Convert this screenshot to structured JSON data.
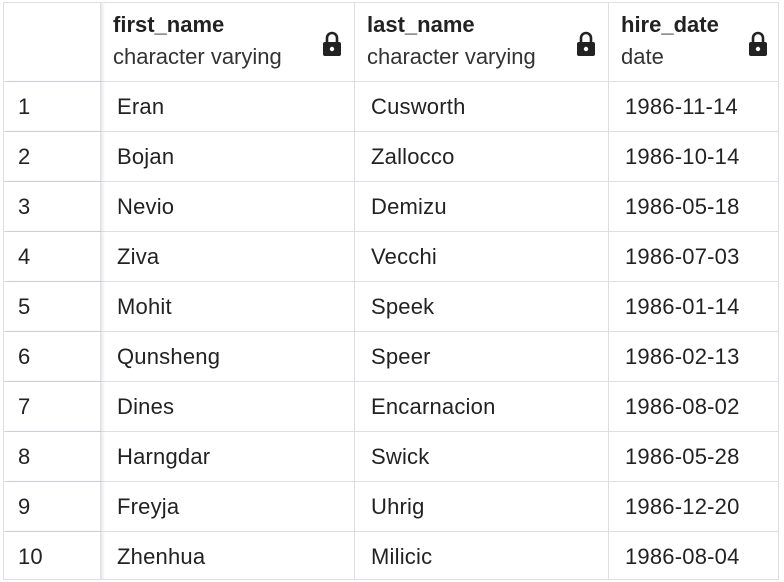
{
  "columns": [
    {
      "name": "first_name",
      "type": "character varying",
      "icon": "lock-icon"
    },
    {
      "name": "last_name",
      "type": "character varying",
      "icon": "lock-icon"
    },
    {
      "name": "hire_date",
      "type": "date",
      "icon": "lock-icon"
    }
  ],
  "rows": [
    {
      "index": "1",
      "first_name": "Eran",
      "last_name": "Cusworth",
      "hire_date": "1986-11-14"
    },
    {
      "index": "2",
      "first_name": "Bojan",
      "last_name": "Zallocco",
      "hire_date": "1986-10-14"
    },
    {
      "index": "3",
      "first_name": "Nevio",
      "last_name": "Demizu",
      "hire_date": "1986-05-18"
    },
    {
      "index": "4",
      "first_name": "Ziva",
      "last_name": "Vecchi",
      "hire_date": "1986-07-03"
    },
    {
      "index": "5",
      "first_name": "Mohit",
      "last_name": "Speek",
      "hire_date": "1986-01-14"
    },
    {
      "index": "6",
      "first_name": "Qunsheng",
      "last_name": "Speer",
      "hire_date": "1986-02-13"
    },
    {
      "index": "7",
      "first_name": "Dines",
      "last_name": "Encarnacion",
      "hire_date": "1986-08-02"
    },
    {
      "index": "8",
      "first_name": "Harngdar",
      "last_name": "Swick",
      "hire_date": "1986-05-28"
    },
    {
      "index": "9",
      "first_name": "Freyja",
      "last_name": "Uhrig",
      "hire_date": "1986-12-20"
    },
    {
      "index": "10",
      "first_name": "Zhenhua",
      "last_name": "Milicic",
      "hire_date": "1986-08-04"
    }
  ],
  "colors": {
    "border": "#dcdfe4",
    "text": "#222222"
  }
}
